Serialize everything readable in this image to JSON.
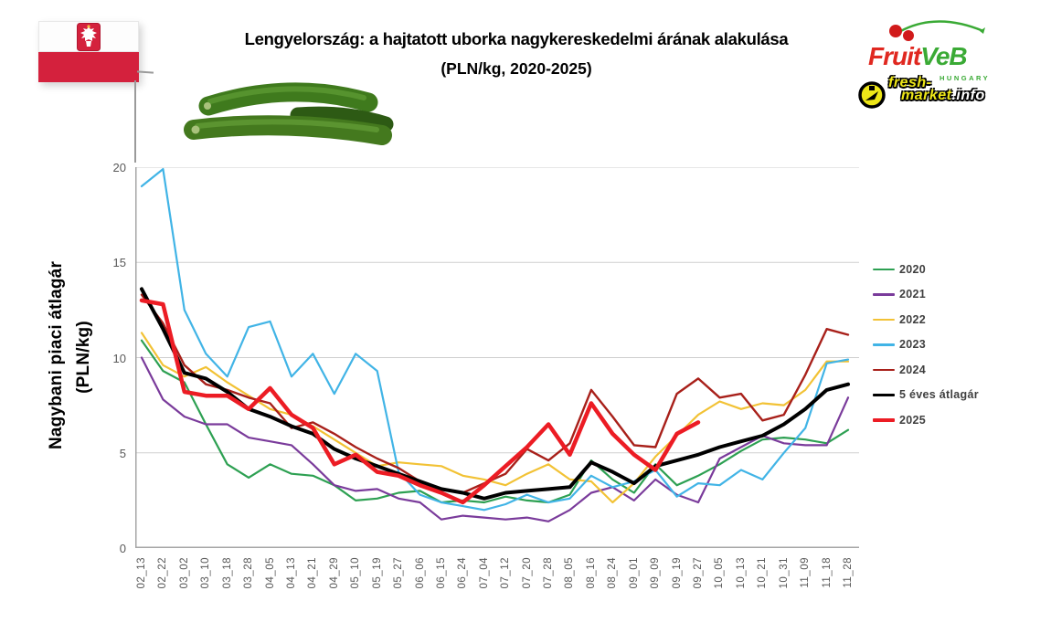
{
  "header": {
    "title_line1": "Lengyelország: a hajtatott uborka nagykereskedelmi árának alakulása",
    "title_line2": "(PLN/kg, 2020-2025)"
  },
  "logos": {
    "fruitveb": {
      "part1": "Fruit",
      "part2": "VeB",
      "subtext": "HUNGARY",
      "color_red": "#e02820",
      "color_green": "#3aaa35"
    },
    "freshmarket": {
      "line1": "fresh-",
      "line2": "market",
      "suffix": ".info",
      "color_yellow": "#ede618"
    }
  },
  "y_axis": {
    "title": "Nagybani piaci átlagár",
    "unit": "(PLN/kg)"
  },
  "chart_data": {
    "type": "line",
    "ylabel": "Nagybani piaci átlagár (PLN/kg)",
    "ylim": [
      0,
      20
    ],
    "yticks": [
      0,
      5,
      10,
      15,
      20
    ],
    "grid": "horizontal",
    "legend_position": "right",
    "categories": [
      "02_13",
      "02_22",
      "03_02",
      "03_10",
      "03_18",
      "03_28",
      "04_05",
      "04_13",
      "04_21",
      "04_29",
      "05_10",
      "05_19",
      "05_27",
      "06_06",
      "06_15",
      "06_24",
      "07_04",
      "07_12",
      "07_20",
      "07_28",
      "08_05",
      "08_16",
      "08_24",
      "09_01",
      "09_09",
      "09_19",
      "09_27",
      "10_05",
      "10_13",
      "10_21",
      "10_31",
      "11_09",
      "11_18",
      "11_28"
    ],
    "series": [
      {
        "name": "2020",
        "color": "#2da052",
        "width": 2.2,
        "values": [
          10.9,
          9.3,
          8.7,
          6.5,
          4.4,
          3.7,
          4.4,
          3.9,
          3.8,
          3.3,
          2.5,
          2.6,
          2.9,
          3.0,
          2.4,
          2.5,
          2.4,
          2.7,
          2.5,
          2.4,
          2.8,
          4.6,
          3.6,
          2.9,
          4.4,
          3.3,
          3.8,
          4.4,
          5.1,
          5.7,
          5.8,
          5.7,
          5.5,
          6.2
        ]
      },
      {
        "name": "2021",
        "color": "#7a3b9b",
        "width": 2.2,
        "values": [
          10.0,
          7.8,
          6.9,
          6.5,
          6.5,
          5.8,
          5.6,
          5.4,
          4.4,
          3.3,
          3.0,
          3.1,
          2.6,
          2.4,
          1.5,
          1.7,
          1.6,
          1.5,
          1.6,
          1.4,
          2.0,
          2.9,
          3.2,
          2.5,
          3.6,
          2.8,
          2.4,
          4.7,
          5.3,
          5.9,
          5.5,
          5.4,
          5.4,
          7.9
        ]
      },
      {
        "name": "2022",
        "color": "#f2c235",
        "width": 2.2,
        "values": [
          11.3,
          9.6,
          9.0,
          9.5,
          8.7,
          8.0,
          7.3,
          7.0,
          6.4,
          5.7,
          5.0,
          4.3,
          4.5,
          4.4,
          4.3,
          3.8,
          3.6,
          3.3,
          3.9,
          4.4,
          3.6,
          3.5,
          2.4,
          3.4,
          4.8,
          5.9,
          7.0,
          7.7,
          7.3,
          7.6,
          7.5,
          8.3,
          9.8,
          9.8
        ]
      },
      {
        "name": "2023",
        "color": "#41b4e6",
        "width": 2.2,
        "values": [
          19.0,
          19.9,
          12.5,
          10.2,
          9.0,
          11.6,
          11.9,
          9.0,
          10.2,
          8.1,
          10.2,
          9.3,
          4.0,
          2.8,
          2.4,
          2.2,
          2.0,
          2.3,
          2.8,
          2.4,
          2.6,
          3.8,
          3.2,
          3.5,
          4.1,
          2.7,
          3.4,
          3.3,
          4.1,
          3.6,
          5.0,
          6.3,
          9.7,
          9.9
        ]
      },
      {
        "name": "2024",
        "color": "#a8201a",
        "width": 2.4,
        "values": [
          13.3,
          11.8,
          9.6,
          8.6,
          8.3,
          7.9,
          7.6,
          6.3,
          6.6,
          6.0,
          5.3,
          4.7,
          4.2,
          3.5,
          3.1,
          2.9,
          3.4,
          3.9,
          5.2,
          4.6,
          5.5,
          8.3,
          6.9,
          5.4,
          5.3,
          8.1,
          8.9,
          7.9,
          8.1,
          6.7,
          7.0,
          9.1,
          11.5,
          11.2
        ]
      },
      {
        "name": "5 éves átlagár",
        "color": "#000000",
        "width": 4,
        "values": [
          13.6,
          11.5,
          9.2,
          8.9,
          8.2,
          7.3,
          6.9,
          6.4,
          6.0,
          5.2,
          4.7,
          4.3,
          3.9,
          3.5,
          3.1,
          2.9,
          2.6,
          2.9,
          3.0,
          3.1,
          3.2,
          4.5,
          4.0,
          3.4,
          4.3,
          4.6,
          4.9,
          5.3,
          5.6,
          5.9,
          6.5,
          7.3,
          8.3,
          8.6
        ]
      },
      {
        "name": "2025",
        "color": "#ec1c24",
        "width": 4.5,
        "values": [
          13.0,
          12.8,
          8.2,
          8.0,
          8.0,
          7.3,
          8.4,
          7.0,
          6.3,
          4.4,
          4.9,
          4.0,
          3.8,
          3.3,
          2.9,
          2.4,
          3.3,
          4.3,
          5.3,
          6.5,
          4.9,
          7.6,
          6.0,
          4.9,
          4.1,
          6.0,
          6.6,
          null,
          null,
          null,
          null,
          null,
          null,
          null
        ]
      }
    ]
  }
}
